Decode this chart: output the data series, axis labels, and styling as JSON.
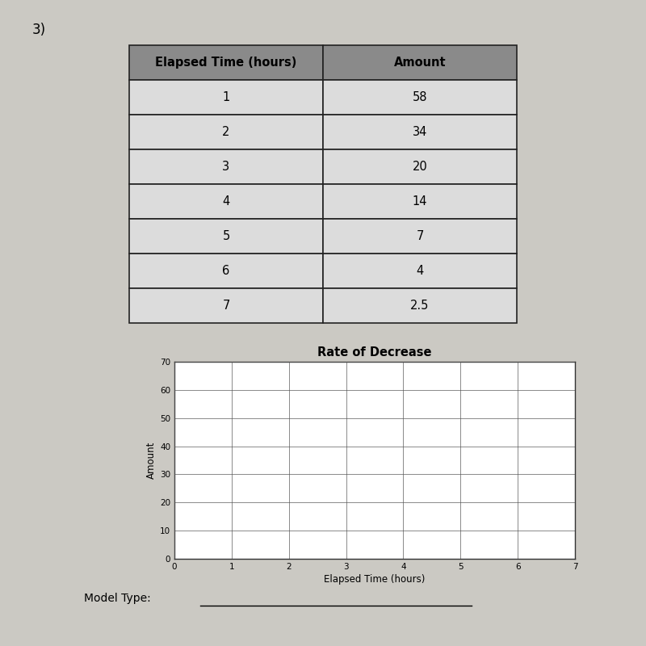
{
  "table_headers": [
    "Elapsed Time (hours)",
    "Amount"
  ],
  "table_data": [
    [
      1,
      "58"
    ],
    [
      2,
      "34"
    ],
    [
      3,
      "20"
    ],
    [
      4,
      "14"
    ],
    [
      5,
      "7"
    ],
    [
      6,
      "4"
    ],
    [
      7,
      "2.5"
    ]
  ],
  "chart_title": "Rate of Decrease",
  "x_label": "Elapsed Time (hours)",
  "y_label": "Amount",
  "x_ticks": [
    0,
    1,
    2,
    3,
    4,
    5,
    6,
    7
  ],
  "y_ticks": [
    0,
    10,
    20,
    30,
    40,
    50,
    60,
    70
  ],
  "x_lim": [
    0,
    7
  ],
  "y_lim": [
    0,
    70
  ],
  "header_bg_color": "#8a8a8a",
  "row_bg_color": "#dcdcdc",
  "border_color": "#222222",
  "page_number": "3)",
  "model_type_label": "Model Type:",
  "background_color": "#cbc9c3",
  "plot_bg_color": "#ffffff"
}
